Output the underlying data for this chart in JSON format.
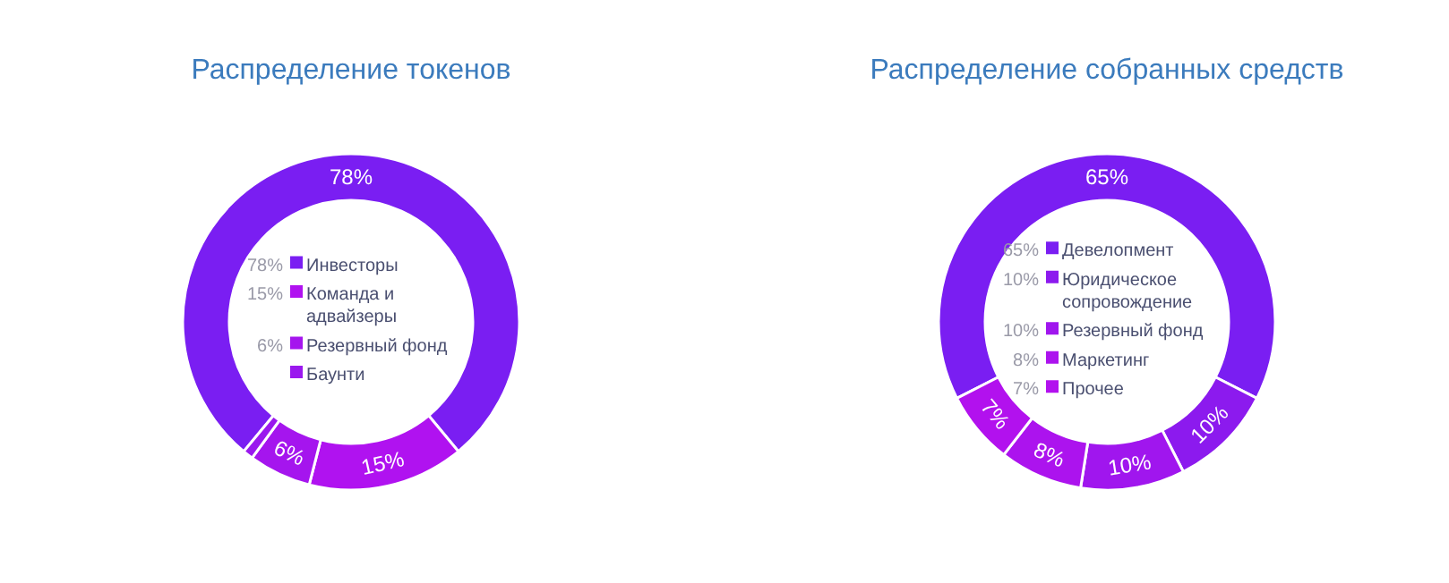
{
  "chart_data": [
    {
      "type": "donut",
      "title": "Распределение токенов",
      "categories": [
        "Инвесторы",
        "Команда и адвайзеры",
        "Резервный фонд",
        "Баунти"
      ],
      "values": [
        78,
        15,
        6,
        1
      ],
      "value_labels": [
        "78%",
        "15%",
        "6%",
        null
      ],
      "colors": [
        "#7a1ef2",
        "#b012f0",
        "#a515ee",
        "#9a18ee"
      ],
      "legend": "center"
    },
    {
      "type": "donut",
      "title": "Распределение собранных средств",
      "categories": [
        "Девелопмент",
        "Юридическое сопровождение",
        "Резервный фонд",
        "Маркетинг",
        "Прочее"
      ],
      "values": [
        65,
        10,
        10,
        8,
        7
      ],
      "value_labels": [
        "65%",
        "10%",
        "10%",
        "8%",
        "7%"
      ],
      "colors": [
        "#7a1ef2",
        "#8c1aee",
        "#a016ee",
        "#ac13ee",
        "#b211ee"
      ],
      "legend": "center"
    }
  ]
}
